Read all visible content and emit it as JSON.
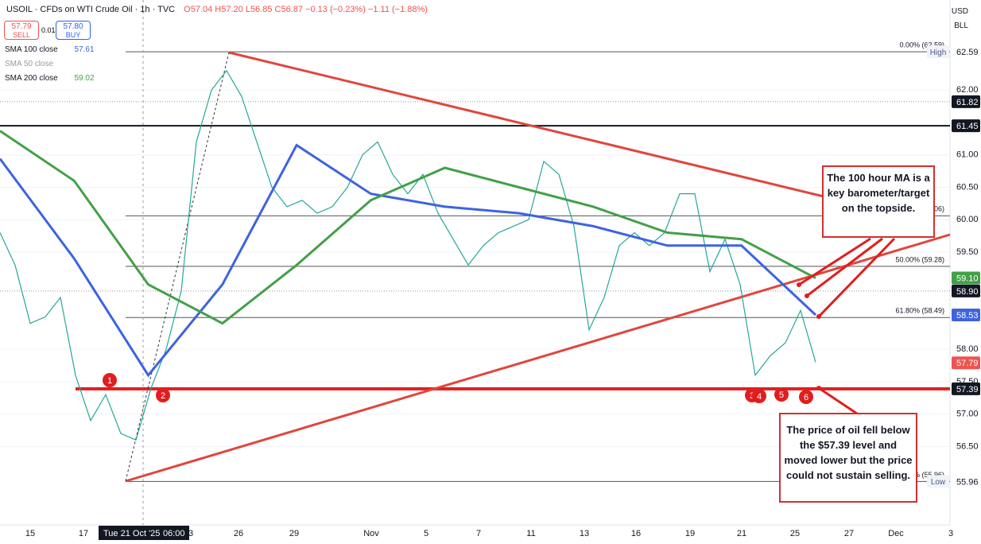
{
  "header": {
    "symbol_line": "USOIL · CFDs on WTI Crude Oil · 1h · TVC",
    "ohlc": "O57.04 H57.20 L56.85 C56.87 −0.13 (−0.23%) −1.11 (−1.88%)",
    "sell_price": "57.79",
    "sell_label": "SELL",
    "spread": "0.01",
    "buy_price": "57.80",
    "buy_label": "BUY",
    "currency": "USD",
    "unit": "BLL"
  },
  "chart_data": {
    "type": "line",
    "ylim": [
      55.29,
      63.39
    ],
    "yticks": [
      {
        "value": 56.5,
        "label": "56.50"
      },
      {
        "value": 57,
        "label": "57.00"
      },
      {
        "value": 57.5,
        "label": "57.50"
      },
      {
        "value": 58,
        "label": "58.00"
      },
      {
        "value": 59.5,
        "label": "59.50"
      },
      {
        "value": 60,
        "label": "60.00"
      },
      {
        "value": 60.5,
        "label": "60.50"
      },
      {
        "value": 61,
        "label": "61.00"
      },
      {
        "value": 62,
        "label": "62.00"
      }
    ],
    "series": [
      {
        "color": "#26a69a",
        "values": [
          59.8,
          59.3,
          58.4,
          58.5,
          58.8,
          57.6,
          56.9,
          57.3,
          56.7,
          56.6,
          57.4,
          58.0,
          58.9,
          61.2,
          62.0,
          62.3,
          61.9,
          61.2,
          60.5,
          60.2,
          60.3,
          60.1,
          60.2,
          60.5,
          61.0,
          61.2,
          60.7,
          60.4,
          60.7,
          60.1,
          59.7,
          59.3,
          59.6,
          59.8,
          59.9,
          60.0,
          60.9,
          60.7,
          59.9,
          58.3,
          58.8,
          59.6,
          59.8,
          59.6,
          59.8,
          60.4,
          60.4,
          59.2,
          59.7,
          59.0,
          57.6,
          57.9,
          58.1,
          58.6,
          57.8
        ]
      },
      {
        "name": "SMA 100 close",
        "last": "57.61",
        "color": "#3d63e0",
        "values": [
          60.94,
          59.4,
          57.6,
          59.0,
          61.15,
          60.4,
          60.2,
          60.1,
          59.9,
          59.6,
          59.6,
          58.53
        ]
      },
      {
        "name": "SMA 50 close",
        "color": "#aaaaaa",
        "values": []
      },
      {
        "name": "SMA 200 close",
        "last": "59.02",
        "color": "#43a047",
        "values": [
          61.37,
          60.6,
          59.0,
          58.4,
          59.3,
          60.3,
          60.8,
          60.5,
          60.2,
          59.8,
          59.7,
          59.1
        ]
      }
    ],
    "price_tags": [
      {
        "value": 62.59,
        "label": "62.59",
        "tag": "High",
        "bg": "#ffffff",
        "fg": "#131722"
      },
      {
        "value": 61.82,
        "label": "61.82",
        "bg": "#131722",
        "fg": "#ffffff"
      },
      {
        "value": 61.45,
        "label": "61.45",
        "bg": "#131722",
        "fg": "#ffffff"
      },
      {
        "value": 59.1,
        "label": "59.10",
        "bg": "#43a047",
        "fg": "#ffffff"
      },
      {
        "value": 58.9,
        "label": "58.90",
        "bg": "#131722",
        "fg": "#ffffff"
      },
      {
        "value": 58.53,
        "label": "58.53",
        "bg": "#3d63e0",
        "fg": "#ffffff"
      },
      {
        "value": 57.79,
        "label": "57.79",
        "bg": "#ef5350",
        "fg": "#ffffff"
      },
      {
        "value": 57.39,
        "label": "57.39",
        "bg": "#131722",
        "fg": "#ffffff"
      },
      {
        "value": 55.96,
        "label": "55.96",
        "tag": "Low",
        "bg": "#ffffff",
        "fg": "#131722"
      }
    ],
    "fib_levels": [
      {
        "value": 62.59,
        "label": "0.00% (62.59)"
      },
      {
        "value": 60.06,
        "label": "06)"
      },
      {
        "value": 59.28,
        "label": "50.00% (59.28)"
      },
      {
        "value": 58.49,
        "label": "61.80% (58.49)"
      },
      {
        "value": 55.96,
        "label": "% (55.96)"
      }
    ],
    "levels": [
      {
        "value": 61.45,
        "style": "solid"
      },
      {
        "value": 61.82,
        "style": "dotted"
      },
      {
        "value": 58.9,
        "style": "dotted"
      },
      {
        "value": 57.39,
        "style": "support"
      }
    ],
    "time_labels": [
      "15",
      "17",
      "3",
      "26",
      "29",
      "Nov",
      "5",
      "7",
      "11",
      "13",
      "16",
      "19",
      "21",
      "25",
      "27",
      "Dec",
      "3"
    ],
    "crosshair_label": "Tue 21 Oct '25",
    "crosshair_time": "06:00",
    "markers": [
      "1",
      "2",
      "3",
      "4",
      "5",
      "6"
    ],
    "annotations": [
      "The 100 hour MA is a key barometer/target on the topside.",
      "The price of oil fell below the $57.39 level and moved lower but the price could not sustain selling."
    ]
  }
}
